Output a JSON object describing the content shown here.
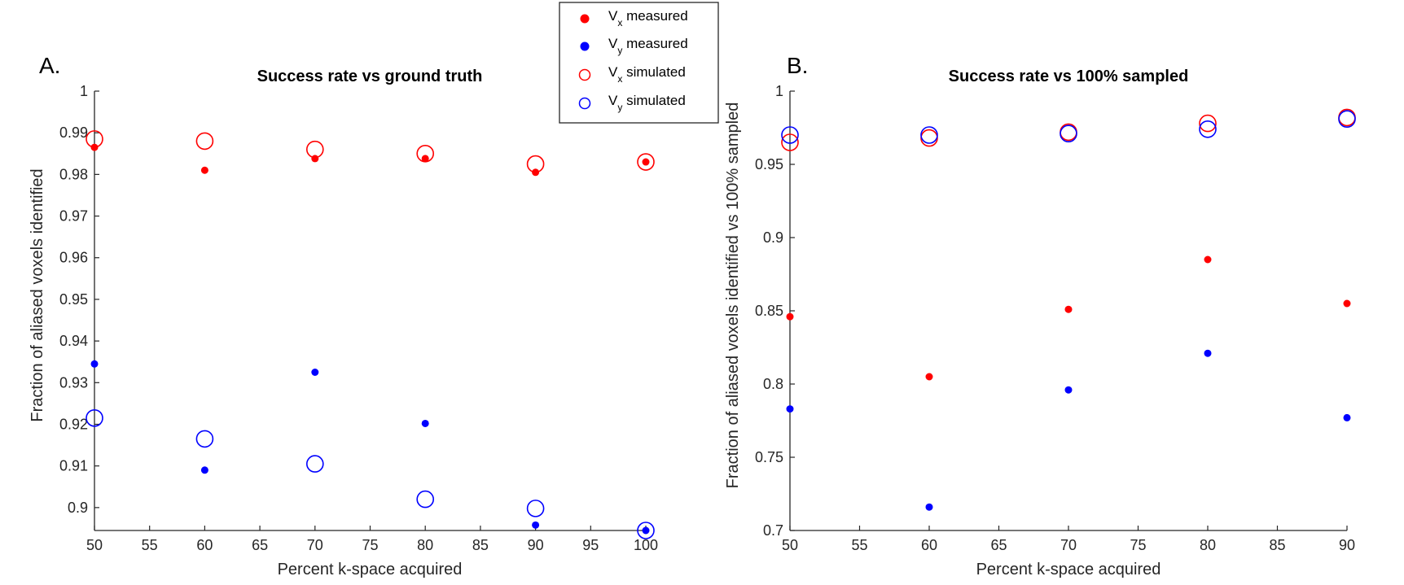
{
  "legend": {
    "entries": [
      {
        "symbol": "V",
        "sub": "x",
        "label": " measured",
        "color": "#ff0000",
        "marker": "filled"
      },
      {
        "symbol": "V",
        "sub": "y",
        "label": " measured",
        "color": "#0000ff",
        "marker": "filled"
      },
      {
        "symbol": "V",
        "sub": "x",
        "label": " simulated",
        "color": "#ff0000",
        "marker": "open"
      },
      {
        "symbol": "V",
        "sub": "y",
        "label": " simulated",
        "color": "#0000ff",
        "marker": "open"
      }
    ]
  },
  "chart_data": [
    {
      "type": "scatter",
      "panel_label": "A.",
      "title": "Success rate vs ground truth",
      "xlabel": "Percent k-space acquired",
      "ylabel": "Fraction of aliased voxels identified",
      "xlim": [
        50,
        100
      ],
      "ylim": [
        0.8945,
        1.0
      ],
      "xticks": [
        50,
        55,
        60,
        65,
        70,
        75,
        80,
        85,
        90,
        95,
        100
      ],
      "xtick_labels": [
        "50",
        "55",
        "60",
        "65",
        "70",
        "75",
        "80",
        "85",
        "90",
        "95",
        "100"
      ],
      "yticks": [
        0.9,
        0.91,
        0.92,
        0.93,
        0.94,
        0.95,
        0.96,
        0.97,
        0.98,
        0.99,
        1.0
      ],
      "ytick_labels": [
        "0.9",
        "0.91",
        "0.92",
        "0.93",
        "0.94",
        "0.95",
        "0.96",
        "0.97",
        "0.98",
        "0.99",
        "1"
      ],
      "series": [
        {
          "name": "Vx measured",
          "color": "#ff0000",
          "marker": "filled",
          "x": [
            50,
            60,
            70,
            80,
            90,
            100
          ],
          "y": [
            0.9865,
            0.981,
            0.9838,
            0.9838,
            0.9805,
            0.983
          ]
        },
        {
          "name": "Vy measured",
          "color": "#0000ff",
          "marker": "filled",
          "x": [
            50,
            60,
            70,
            80,
            90,
            100
          ],
          "y": [
            0.9345,
            0.909,
            0.9325,
            0.9202,
            0.8958,
            0.8945
          ]
        },
        {
          "name": "Vx simulated",
          "color": "#ff0000",
          "marker": "open",
          "x": [
            50,
            60,
            70,
            80,
            90,
            100
          ],
          "y": [
            0.9885,
            0.988,
            0.986,
            0.985,
            0.9825,
            0.983
          ]
        },
        {
          "name": "Vy simulated",
          "color": "#0000ff",
          "marker": "open",
          "x": [
            50,
            60,
            70,
            80,
            90,
            100
          ],
          "y": [
            0.9215,
            0.9165,
            0.9105,
            0.902,
            0.8998,
            0.8945
          ]
        }
      ]
    },
    {
      "type": "scatter",
      "panel_label": "B.",
      "title": "Success rate vs 100% sampled",
      "xlabel": "Percent k-space acquired",
      "ylabel": "Fraction of aliased voxels identified vs 100% sampled",
      "xlim": [
        50,
        90
      ],
      "ylim": [
        0.7,
        1.0
      ],
      "xticks": [
        50,
        55,
        60,
        65,
        70,
        75,
        80,
        85,
        90
      ],
      "xtick_labels": [
        "50",
        "55",
        "60",
        "65",
        "70",
        "75",
        "80",
        "85",
        "90"
      ],
      "yticks": [
        0.7,
        0.75,
        0.8,
        0.85,
        0.9,
        0.95,
        1.0
      ],
      "ytick_labels": [
        "0.7",
        "0.75",
        "0.8",
        "0.85",
        "0.9",
        "0.95",
        "1"
      ],
      "series": [
        {
          "name": "Vx measured",
          "color": "#ff0000",
          "marker": "filled",
          "x": [
            50,
            60,
            70,
            80,
            90
          ],
          "y": [
            0.846,
            0.805,
            0.851,
            0.885,
            0.855
          ]
        },
        {
          "name": "Vy measured",
          "color": "#0000ff",
          "marker": "filled",
          "x": [
            50,
            60,
            70,
            80,
            90
          ],
          "y": [
            0.783,
            0.716,
            0.796,
            0.821,
            0.777
          ]
        },
        {
          "name": "Vx simulated",
          "color": "#ff0000",
          "marker": "open",
          "x": [
            50,
            60,
            70,
            80,
            90
          ],
          "y": [
            0.965,
            0.968,
            0.972,
            0.978,
            0.982
          ]
        },
        {
          "name": "Vy simulated",
          "color": "#0000ff",
          "marker": "open",
          "x": [
            50,
            60,
            70,
            80,
            90
          ],
          "y": [
            0.97,
            0.97,
            0.971,
            0.974,
            0.981
          ]
        }
      ]
    }
  ]
}
